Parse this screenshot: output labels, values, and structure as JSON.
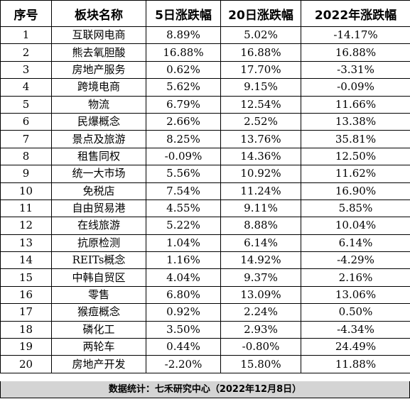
{
  "table": {
    "headers": [
      "序号",
      "板块名称",
      "5日涨跌幅",
      "20日涨跌幅",
      "2022年涨跌幅"
    ],
    "rows": [
      [
        "1",
        "互联网电商",
        "8.89%",
        "5.02%",
        "-14.17%"
      ],
      [
        "2",
        "熊去氧胆酸",
        "16.88%",
        "16.88%",
        "16.88%"
      ],
      [
        "3",
        "房地产服务",
        "0.62%",
        "17.70%",
        "-3.31%"
      ],
      [
        "4",
        "跨境电商",
        "5.62%",
        "9.15%",
        "-0.09%"
      ],
      [
        "5",
        "物流",
        "6.79%",
        "12.54%",
        "11.66%"
      ],
      [
        "6",
        "民爆概念",
        "2.66%",
        "2.52%",
        "13.38%"
      ],
      [
        "7",
        "景点及旅游",
        "8.25%",
        "13.76%",
        "35.81%"
      ],
      [
        "8",
        "租售同权",
        "-0.09%",
        "14.36%",
        "12.50%"
      ],
      [
        "9",
        "统一大市场",
        "5.56%",
        "10.92%",
        "11.62%"
      ],
      [
        "10",
        "免税店",
        "7.54%",
        "11.24%",
        "16.90%"
      ],
      [
        "11",
        "自由贸易港",
        "4.55%",
        "9.11%",
        "5.85%"
      ],
      [
        "12",
        "在线旅游",
        "5.22%",
        "8.88%",
        "10.04%"
      ],
      [
        "13",
        "抗原检测",
        "1.04%",
        "6.14%",
        "6.14%"
      ],
      [
        "14",
        "REITs概念",
        "1.16%",
        "14.92%",
        "-4.29%"
      ],
      [
        "15",
        "中韩自贸区",
        "4.04%",
        "9.37%",
        "2.16%"
      ],
      [
        "16",
        "零售",
        "6.80%",
        "13.09%",
        "13.06%"
      ],
      [
        "17",
        "猴痘概念",
        "0.92%",
        "2.24%",
        "0.50%"
      ],
      [
        "18",
        "磷化工",
        "3.50%",
        "2.93%",
        "-4.34%"
      ],
      [
        "19",
        "两轮车",
        "0.44%",
        "-0.80%",
        "24.49%"
      ],
      [
        "20",
        "房地产开发",
        "-2.20%",
        "15.80%",
        "11.88%"
      ]
    ]
  },
  "footer": {
    "text": "数据统计：七禾研究中心（2022年12月8日）"
  }
}
